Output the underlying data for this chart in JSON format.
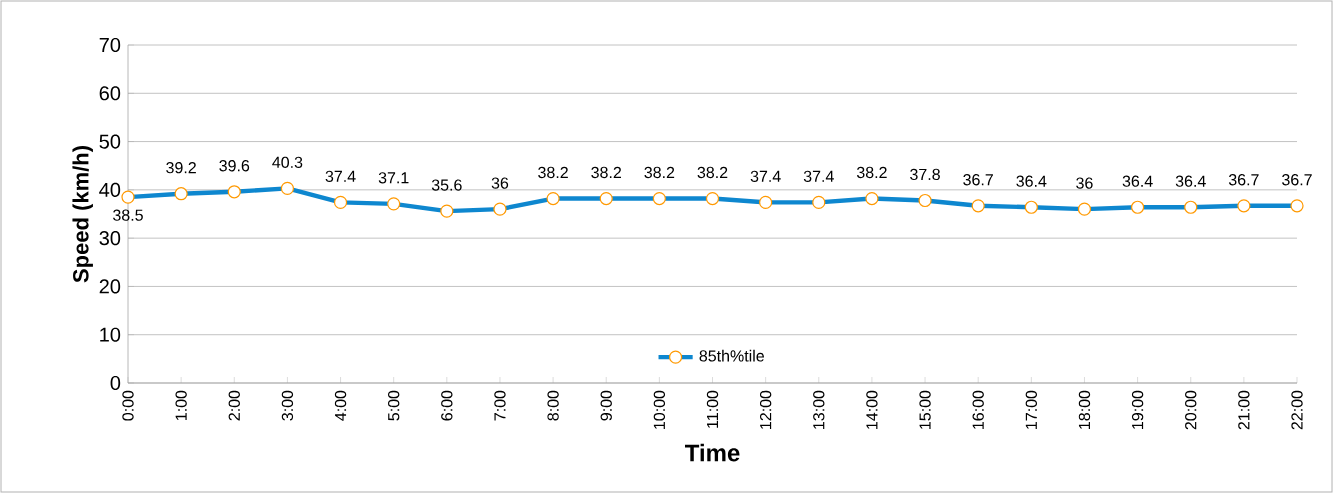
{
  "chart_data": {
    "type": "line",
    "xlabel": "Time",
    "ylabel": "Speed (km/h)",
    "categories": [
      "0:00",
      "1:00",
      "2:00",
      "3:00",
      "4:00",
      "5:00",
      "6:00",
      "7:00",
      "8:00",
      "9:00",
      "10:00",
      "11:00",
      "12:00",
      "13:00",
      "14:00",
      "15:00",
      "16:00",
      "17:00",
      "18:00",
      "19:00",
      "20:00",
      "21:00",
      "22:00"
    ],
    "series": [
      {
        "name": "85th%tile",
        "color": "#0e87cf",
        "values": [
          38.5,
          39.2,
          39.6,
          40.3,
          37.4,
          37.1,
          35.6,
          36,
          38.2,
          38.2,
          38.2,
          38.2,
          37.4,
          37.4,
          38.2,
          37.8,
          36.7,
          36.4,
          36,
          36.4,
          36.4,
          36.7,
          36.7
        ]
      }
    ],
    "ylim": [
      0,
      70
    ],
    "yticks": [
      0,
      10,
      20,
      30,
      40,
      50,
      60,
      70
    ],
    "grid": "y",
    "legend": "bottom",
    "marker": "circle",
    "line_style": "solid",
    "data_labels": true
  }
}
